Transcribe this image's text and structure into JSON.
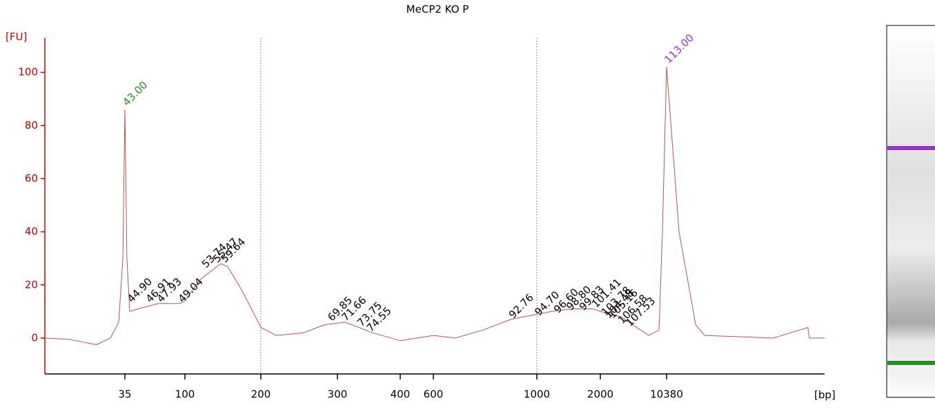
{
  "chart_data": {
    "type": "line",
    "title": "MeCP2 KO P",
    "y_label": "[FU]",
    "x_label": "[bp]",
    "color": "#c0504d",
    "x": [
      0,
      10.6,
      22.6,
      28.7,
      32.3,
      34.1,
      35,
      37.2,
      40.2,
      49.1,
      71.5,
      93.9,
      100,
      120,
      138,
      147,
      156,
      175,
      193,
      200,
      220,
      256,
      283,
      312,
      356,
      400,
      500,
      600,
      685,
      792,
      899,
      1000,
      1239,
      1565,
      1891,
      2000,
      4619,
      8111,
      9420,
      9856,
      10380,
      10904,
      11600,
      11969,
      14860,
      16300,
      16360,
      17000
    ],
    "values": [
      0,
      -0.5,
      -2.5,
      0,
      6,
      30,
      86,
      30,
      10,
      11,
      13,
      13,
      14,
      22,
      26,
      28,
      27,
      18,
      8,
      4,
      1,
      2,
      5,
      6,
      2,
      -1,
      0,
      1,
      0,
      3,
      7,
      9,
      10,
      11,
      11,
      10,
      8,
      1,
      3,
      40,
      102,
      40,
      5,
      1,
      0,
      4,
      0,
      0
    ],
    "xlim": [
      0,
      17000
    ],
    "xticks": [
      35,
      100,
      200,
      300,
      400,
      600,
      1000,
      2000,
      {
        "value": 10380,
        "label": "10380"
      }
    ],
    "ylim": [
      -13.5,
      113
    ],
    "yticks": [
      0,
      20,
      40,
      60,
      80,
      100
    ],
    "vlines": [
      200,
      1000
    ],
    "annotations": [
      {
        "text": "43.00",
        "x": 35,
        "y": 88,
        "color": "#228b22"
      },
      {
        "text": "44.90",
        "x": 40,
        "y": 14
      },
      {
        "text": "46.91",
        "x": 60,
        "y": 14
      },
      {
        "text": "47.93",
        "x": 72,
        "y": 14
      },
      {
        "text": "49.04",
        "x": 95,
        "y": 14
      },
      {
        "text": "53.74",
        "x": 125,
        "y": 27
      },
      {
        "text": "55.47",
        "x": 140,
        "y": 29
      },
      {
        "text": "59.64",
        "x": 150,
        "y": 29
      },
      {
        "text": "69.85",
        "x": 290,
        "y": 7
      },
      {
        "text": "71.66",
        "x": 310,
        "y": 7
      },
      {
        "text": "73.75",
        "x": 335,
        "y": 5
      },
      {
        "text": "74.55",
        "x": 350,
        "y": 3
      },
      {
        "text": "92.76",
        "x": 900,
        "y": 8
      },
      {
        "text": "94.70",
        "x": 1000,
        "y": 9
      },
      {
        "text": "96.60",
        "x": 1300,
        "y": 10
      },
      {
        "text": "98.80",
        "x": 1500,
        "y": 11
      },
      {
        "text": "99.83",
        "x": 1700,
        "y": 11
      },
      {
        "text": "101.41",
        "x": 1900,
        "y": 12
      },
      {
        "text": "103.78",
        "x": 2400,
        "y": 9
      },
      {
        "text": "104.48",
        "x": 2800,
        "y": 8
      },
      {
        "text": "105.16",
        "x": 3300,
        "y": 8
      },
      {
        "text": "106.58",
        "x": 4500,
        "y": 6
      },
      {
        "text": "107.53",
        "x": 5500,
        "y": 5
      },
      {
        "text": "113.00",
        "x": 10380,
        "y": 104,
        "color": "#9932cc"
      }
    ]
  }
}
